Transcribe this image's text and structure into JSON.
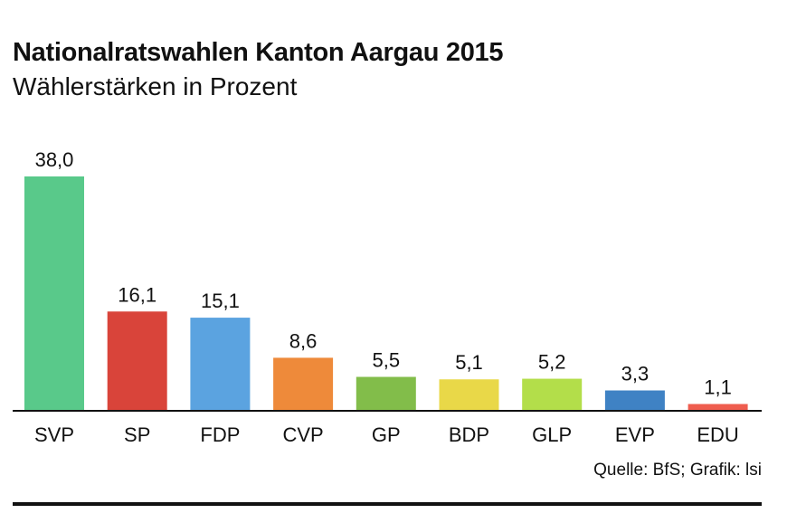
{
  "chart_data": {
    "type": "bar",
    "title": "Nationalratswahlen Kanton Aargau 2015",
    "subtitle": "Wählerstärken in Prozent",
    "categories": [
      "SVP",
      "SP",
      "FDP",
      "CVP",
      "GP",
      "BDP",
      "GLP",
      "EVP",
      "EDU"
    ],
    "values": [
      38.0,
      16.1,
      15.1,
      8.6,
      5.5,
      5.1,
      5.2,
      3.3,
      1.1
    ],
    "value_labels": [
      "38,0",
      "16,1",
      "15,1",
      "8,6",
      "5,5",
      "5,1",
      "5,2",
      "3,3",
      "1,1"
    ],
    "colors": [
      "#59c98a",
      "#d9443a",
      "#5ba3e0",
      "#ee8a3a",
      "#82bd4a",
      "#e9d848",
      "#b3de4a",
      "#3f82c4",
      "#ef5d4f"
    ],
    "ylim": [
      0,
      38.0
    ],
    "xlabel": "",
    "ylabel": "",
    "grid": false
  },
  "footer": {
    "source": "Quelle: BfS; Grafik: lsi"
  }
}
